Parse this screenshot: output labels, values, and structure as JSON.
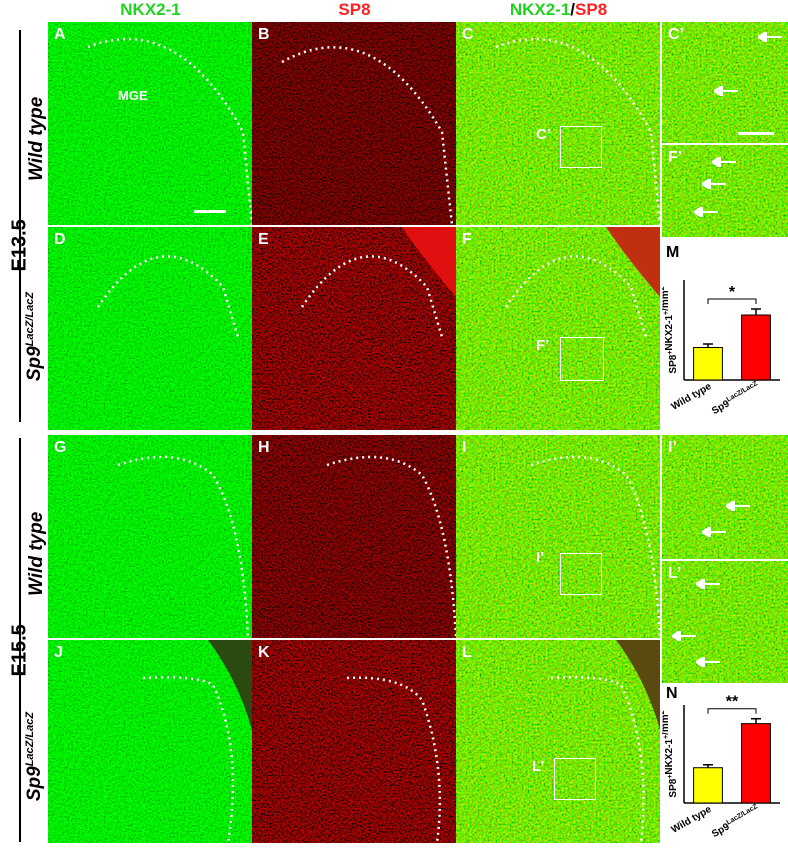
{
  "headers": {
    "col_a": "NKX2-1",
    "col_b": "SP8",
    "col_c_green": "NKX2-1",
    "col_c_sep": "/",
    "col_c_red": "SP8"
  },
  "stages": {
    "top": "E13.5",
    "bottom": "E15.5"
  },
  "genotypes": {
    "wt_top": "Wild type",
    "mut_top_base": "Sp9",
    "mut_top_sup": "LacZ/LacZ",
    "wt_bottom": "Wild type",
    "mut_bottom_base": "Sp9",
    "mut_bottom_sup": "LacZ/LacZ"
  },
  "panels": {
    "A": "A",
    "B": "B",
    "C": "C",
    "Cp": "C’",
    "D": "D",
    "E": "E",
    "F": "F",
    "Fp": "F’",
    "G": "G",
    "H": "H",
    "I": "I",
    "Ip": "I’",
    "J": "J",
    "K": "K",
    "L": "L",
    "Lp": "L’",
    "M": "M",
    "N": "N"
  },
  "region_label": "MGE",
  "inset_labels": {
    "c": "C’",
    "f": "F’",
    "i": "I’",
    "l": "L’"
  },
  "chart_data": [
    {
      "type": "bar",
      "panel": "M",
      "categories": [
        "Wild type",
        "Sp9LacZ/LacZ"
      ],
      "category_labels": [
        {
          "base": "Wild type",
          "sup": ""
        },
        {
          "base": "Sp9",
          "sup": "LacZ/LacZ"
        }
      ],
      "values": [
        650,
        1300
      ],
      "errors": [
        70,
        120
      ],
      "colors": [
        "#ffff00",
        "#ff0000"
      ],
      "ylabel": "SP8+NKX2-1+/mm2",
      "ylabel_parts": {
        "a": "SP8",
        "a_sup": "+",
        "b": "NKX2-1",
        "b_sup": "+",
        "c": "/mm",
        "c_sup": "2"
      },
      "ylim": [
        0,
        2000
      ],
      "significance": "*"
    },
    {
      "type": "bar",
      "panel": "N",
      "categories": [
        "Wild type",
        "Sp9LacZ/LacZ"
      ],
      "category_labels": [
        {
          "base": "Wild type",
          "sup": ""
        },
        {
          "base": "Sp9",
          "sup": "LacZ/LacZ"
        }
      ],
      "values": [
        720,
        1620
      ],
      "errors": [
        60,
        100
      ],
      "colors": [
        "#ffff00",
        "#ff0000"
      ],
      "ylabel": "SP8+NKX2-1+/mm2",
      "ylabel_parts": {
        "a": "SP8",
        "a_sup": "+",
        "b": "NKX2-1",
        "b_sup": "+",
        "c": "/mm",
        "c_sup": "2"
      },
      "ylim": [
        0,
        2000
      ],
      "significance": "**"
    }
  ]
}
